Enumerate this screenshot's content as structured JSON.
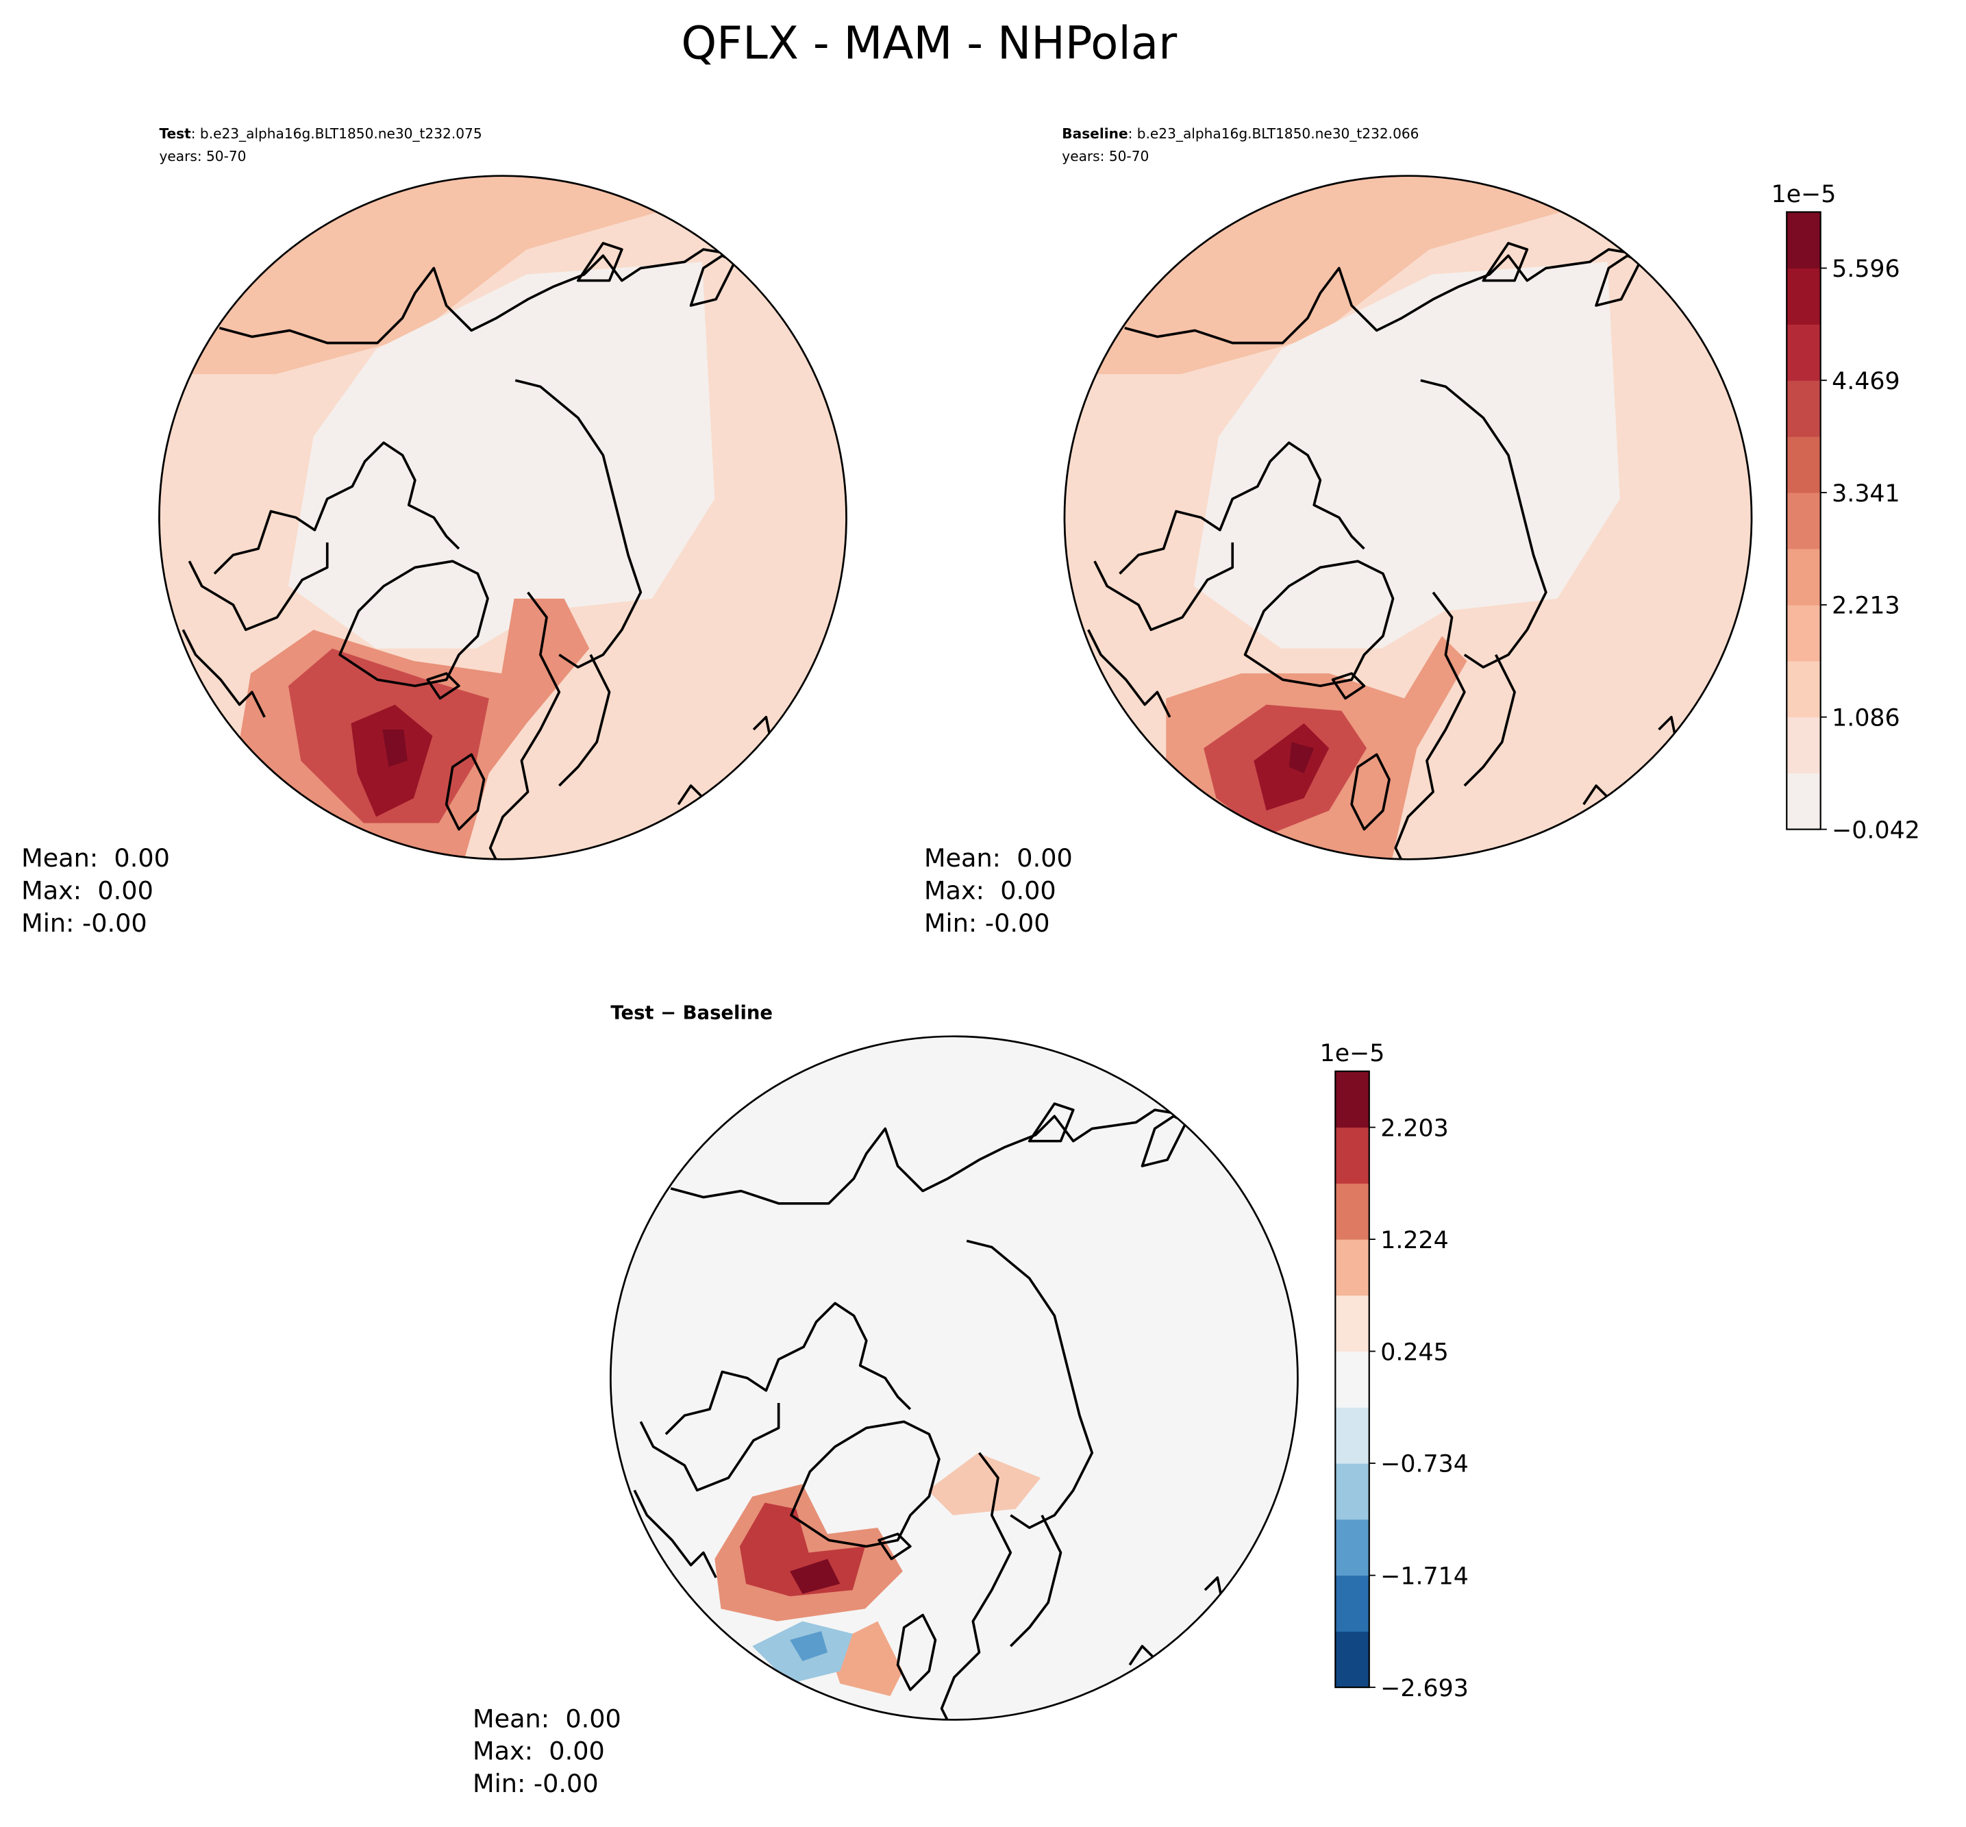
{
  "title": "QFLX - MAM - NHPolar",
  "panels": [
    {
      "title_bold": "Test",
      "title_rest": ": b.e23_alpha16g.BLT1850.ne30_t232.075",
      "years": "years: 50-70",
      "stats": [
        "Mean:  0.00",
        "Max:  0.00",
        "Min: -0.00"
      ]
    },
    {
      "title_bold": "Baseline",
      "title_rest": ": b.e23_alpha16g.BLT1850.ne30_t232.066",
      "years": "years: 50-70",
      "stats": [
        "Mean:  0.00",
        "Max:  0.00",
        "Min: -0.00"
      ]
    },
    {
      "title_bold": "Test − Baseline",
      "stats": [
        "Mean:  0.00",
        "Max:  0.00",
        "Min: -0.00"
      ]
    }
  ],
  "colorbars": [
    {
      "offset_label": "1e−5",
      "ylim": [
        -0.042,
        6.16
      ],
      "yticks": [
        {
          "value": -0.042,
          "label": "−0.042"
        },
        1.086,
        2.213,
        3.341,
        4.469,
        5.596
      ],
      "colors": [
        "#f4efec",
        "#f9e1d7",
        "#fbd0bb",
        "#f7b89d",
        "#f0a083",
        "#e3826a",
        "#d36653",
        "#c44a47",
        "#b42a37",
        "#9a1427",
        "#7a0b22"
      ]
    },
    {
      "offset_label": "1e−5",
      "ylim": [
        -2.693,
        2.693
      ],
      "yticks": [
        {
          "value": -2.693,
          "label": "−2.693"
        },
        {
          "value": -1.714,
          "label": "−1.714"
        },
        {
          "value": -0.734,
          "label": "−0.734"
        },
        0.245,
        1.224,
        2.203
      ],
      "colors": [
        "#114883",
        "#2a6fae",
        "#5a9ccc",
        "#9bc7e0",
        "#d4e6f0",
        "#f5f5f5",
        "#fbe4d8",
        "#f6b699",
        "#dd7a61",
        "#bf3a3d",
        "#7c0c22"
      ]
    }
  ]
}
